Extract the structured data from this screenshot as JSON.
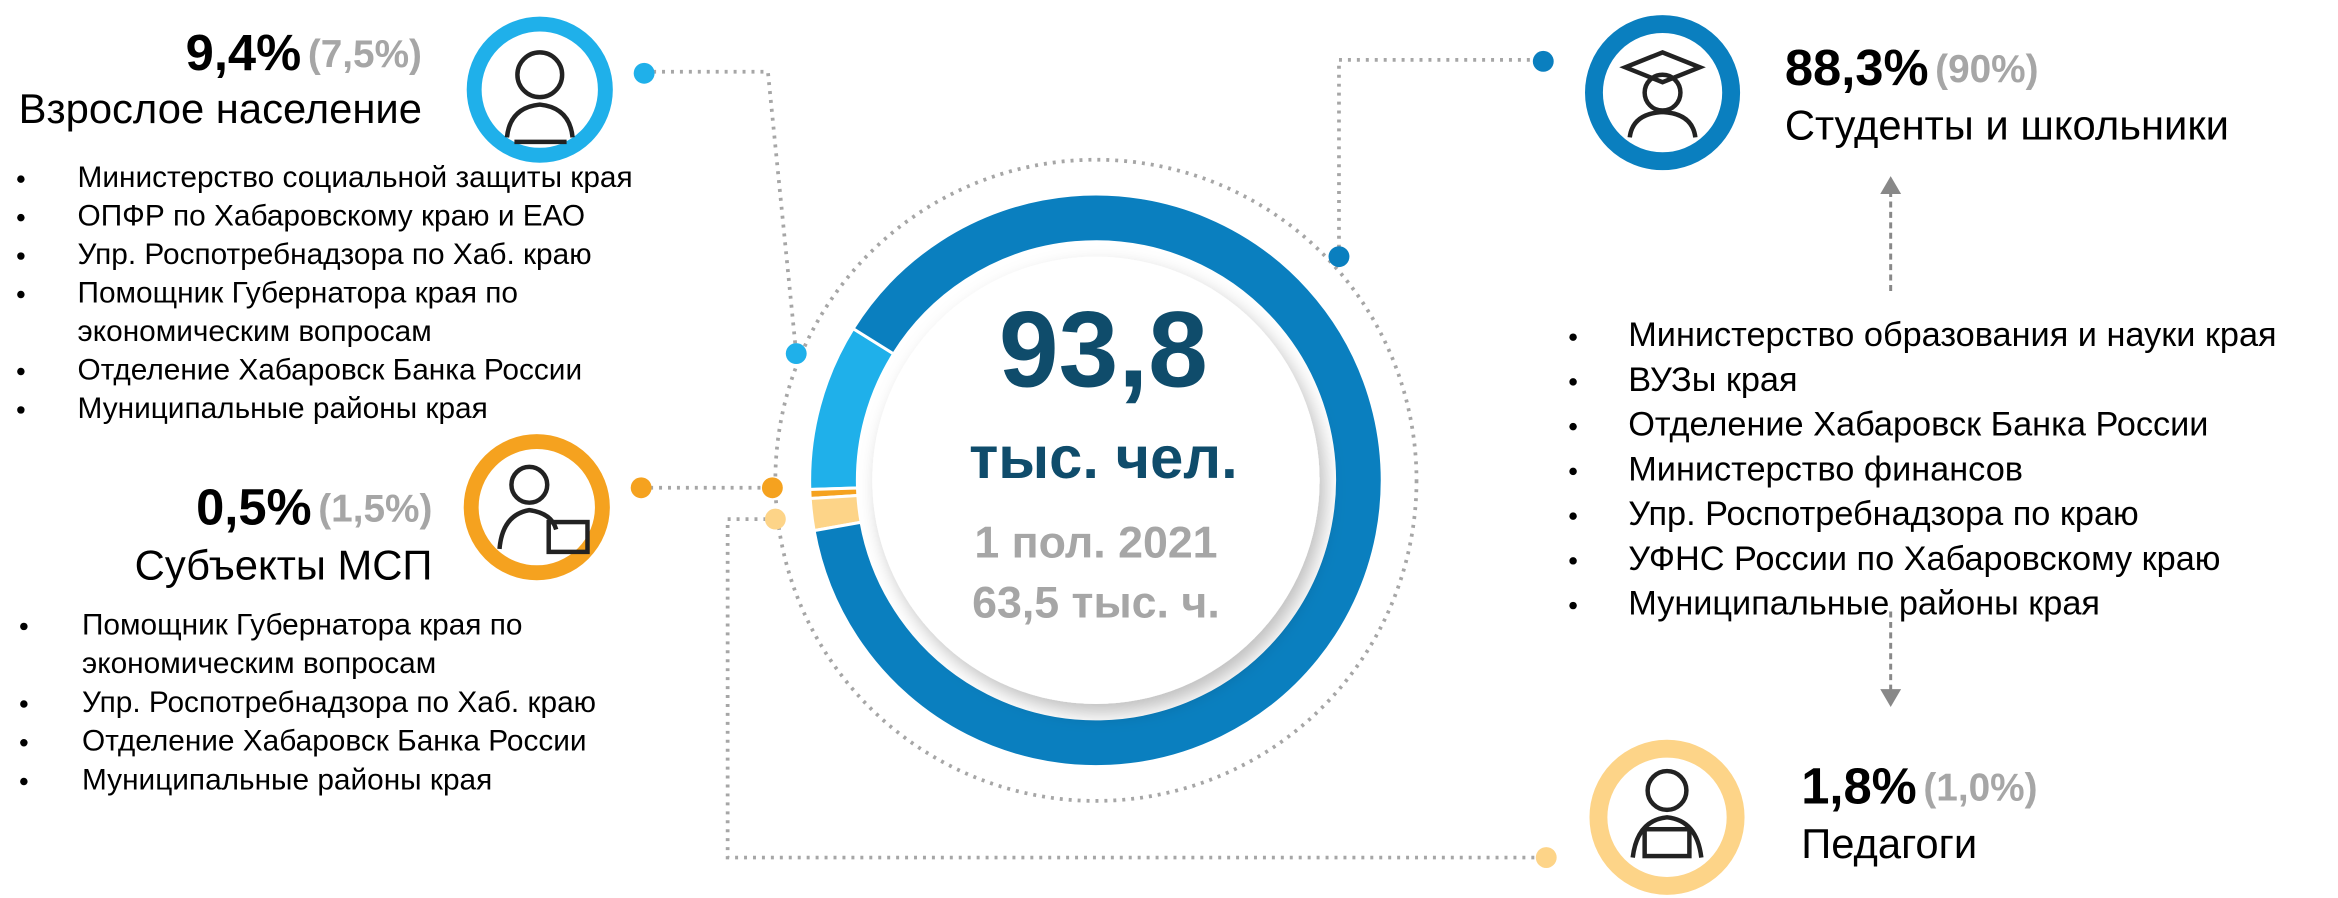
{
  "chart_data": {
    "type": "donut",
    "center": {
      "value_label": "93,8",
      "unit": "тыс. чел.",
      "period": "1 пол. 2021",
      "previous": "63,5 тыс. ч."
    },
    "categories": [
      "Взрослое население",
      "Субъекты МСП",
      "Педагоги",
      "Студенты и школьники"
    ],
    "values": [
      9.4,
      0.5,
      1.8,
      88.3
    ],
    "value_labels": [
      "9,4%",
      "0,5%",
      "1,8%",
      "88,3%"
    ],
    "previous_labels": [
      "(7,5%)",
      "(1,5%)",
      "(1,0%)",
      "(90%)"
    ],
    "colors": [
      "#1fb0ea",
      "#f5a21f",
      "#fdd488",
      "#0a7fbf"
    ],
    "lists": [
      [
        [
          "Министерство социальной защиты края"
        ],
        [
          "ОПФР по Хабаровскому краю и ЕАО"
        ],
        [
          "Упр. Роспотребнадзора по Хаб. краю"
        ],
        [
          "Помощник Губернатора края по",
          "экономическим вопросам"
        ],
        [
          "Отделение Хабаровск Банка России"
        ],
        [
          "Муниципальные районы края"
        ]
      ],
      [
        [
          "Помощник Губернатора края по",
          "экономическим вопросам"
        ],
        [
          "Упр. Роспотребнадзора по Хаб. краю"
        ],
        [
          "Отделение Хабаровск Банка России"
        ],
        [
          "Муниципальные районы края"
        ]
      ],
      [],
      [
        [
          "Министерство образования и науки края"
        ],
        [
          "ВУЗы края"
        ],
        [
          "Отделение Хабаровск Банка России"
        ],
        [
          "Министерство финансов"
        ],
        [
          "Упр. Роспотребнадзора по краю"
        ],
        [
          "УФНС России по Хабаровскому краю"
        ],
        [
          "Муниципальные районы края"
        ]
      ]
    ]
  }
}
